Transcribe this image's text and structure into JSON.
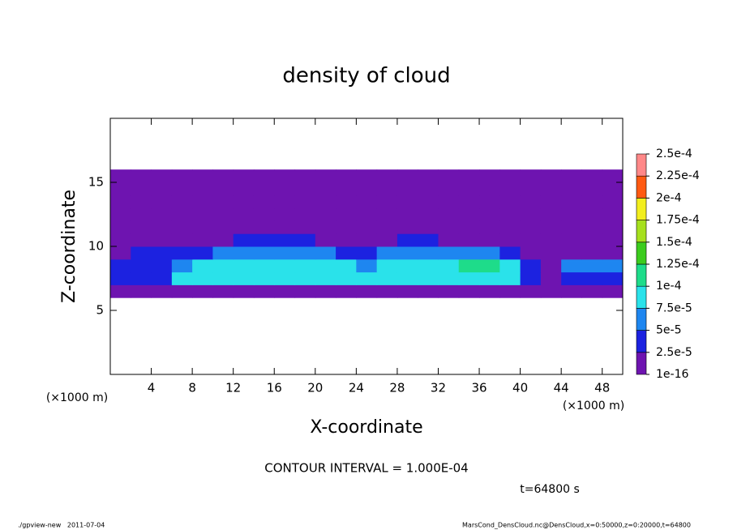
{
  "chart_data": {
    "type": "contour",
    "title": "density of cloud",
    "x_label": "X-coordinate",
    "y_label": "Z-coordinate",
    "x_unit_labels": [
      "(×1000 m)",
      "(×1000 m)"
    ],
    "contour_note": "CONTOUR INTERVAL = 1.000E-04",
    "time_label": "t=64800 s",
    "footer_left": "./gpview-new   2011-07-04",
    "footer_right": "MarsCond_DensCloud.nc@DensCloud,x=0:50000,z=0:20000,t=64800",
    "xlim": [
      0,
      50
    ],
    "xticks": [
      4,
      8,
      12,
      16,
      20,
      24,
      28,
      32,
      36,
      40,
      44,
      48
    ],
    "ylim": [
      0,
      20
    ],
    "yticks": [
      5,
      10,
      15
    ],
    "levels": [
      {
        "value": 1e-16,
        "label": "1e-16"
      },
      {
        "value": 2.5e-05,
        "label": "2.5e-5"
      },
      {
        "value": 5e-05,
        "label": "5e-5"
      },
      {
        "value": 7.5e-05,
        "label": "7.5e-5"
      },
      {
        "value": 0.0001,
        "label": "1e-4"
      },
      {
        "value": 0.000125,
        "label": "1.25e-4"
      },
      {
        "value": 0.00015,
        "label": "1.5e-4"
      },
      {
        "value": 0.000175,
        "label": "1.75e-4"
      },
      {
        "value": 0.0002,
        "label": "2e-4"
      },
      {
        "value": 0.000225,
        "label": "2.25e-4"
      },
      {
        "value": 0.00025,
        "label": "2.5e-4"
      }
    ],
    "colors": [
      "#6e14b0",
      "#1c22e0",
      "#1e86f0",
      "#2ae2ea",
      "#1edc8a",
      "#3ccc1e",
      "#a6e01e",
      "#f2ee1e",
      "#ff5a12",
      "#ff8888"
    ],
    "x": [
      1,
      3,
      5,
      7,
      9,
      11,
      13,
      15,
      17,
      19,
      21,
      23,
      25,
      27,
      29,
      31,
      33,
      35,
      37,
      39,
      41,
      43,
      45,
      47,
      49
    ],
    "y": [
      6.5,
      7.5,
      8.5,
      9.5,
      10.5,
      11.5,
      12.5,
      13.5,
      14.5,
      15.5
    ],
    "z": [
      [
        1e-05,
        1e-05,
        1e-05,
        1e-05,
        1e-05,
        1e-05,
        1e-05,
        1e-05,
        1e-05,
        1e-05,
        1e-05,
        1e-05,
        1e-05,
        1e-05,
        1e-05,
        1e-05,
        1e-05,
        1e-05,
        1e-05,
        1e-05,
        1e-05,
        1e-05,
        1e-05,
        1e-05,
        1e-05
      ],
      [
        3e-05,
        3e-05,
        3e-05,
        8e-05,
        8e-05,
        8e-05,
        8e-05,
        8e-05,
        8e-05,
        8e-05,
        8e-05,
        8e-05,
        8e-05,
        8e-05,
        8e-05,
        8e-05,
        8e-05,
        8e-05,
        8e-05,
        8e-05,
        3e-05,
        1e-05,
        3e-05,
        3e-05,
        3e-05
      ],
      [
        3e-05,
        3e-05,
        3e-05,
        6e-05,
        8e-05,
        8e-05,
        8e-05,
        8e-05,
        8e-05,
        8e-05,
        8e-05,
        8e-05,
        6e-05,
        8e-05,
        8e-05,
        8e-05,
        8e-05,
        0.000102,
        0.000102,
        8e-05,
        3e-05,
        1e-05,
        6e-05,
        6e-05,
        6e-05
      ],
      [
        1e-05,
        3e-05,
        3e-05,
        3e-05,
        3e-05,
        6e-05,
        6e-05,
        6e-05,
        6e-05,
        6e-05,
        6e-05,
        3e-05,
        3e-05,
        6e-05,
        6e-05,
        6e-05,
        6e-05,
        6e-05,
        6e-05,
        3e-05,
        1e-05,
        1e-05,
        1e-05,
        1e-05,
        1e-05
      ],
      [
        1e-05,
        1e-05,
        1e-05,
        1e-05,
        1e-05,
        1e-05,
        3e-05,
        3e-05,
        3e-05,
        3e-05,
        1e-05,
        1e-05,
        1e-05,
        1e-05,
        3e-05,
        3e-05,
        1e-05,
        1e-05,
        1e-05,
        1e-05,
        1e-05,
        1e-05,
        1e-05,
        1e-05,
        1e-05
      ],
      [
        1e-05,
        1e-05,
        1e-05,
        1e-05,
        1e-05,
        1e-05,
        1e-05,
        1e-05,
        1e-05,
        1e-05,
        1e-05,
        1e-05,
        1e-05,
        1e-05,
        1e-05,
        1e-05,
        1e-05,
        1e-05,
        1e-05,
        1e-05,
        1e-05,
        1e-05,
        1e-05,
        1e-05,
        1e-05
      ],
      [
        1e-05,
        1e-05,
        1e-05,
        1e-05,
        1e-05,
        1e-05,
        1e-05,
        1e-05,
        1e-05,
        1e-05,
        1e-05,
        1e-05,
        1e-05,
        1e-05,
        1e-05,
        1e-05,
        1e-05,
        1e-05,
        1e-05,
        1e-05,
        1e-05,
        1e-05,
        1e-05,
        1e-05,
        1e-05
      ],
      [
        1e-05,
        1e-05,
        1e-05,
        1e-05,
        1e-05,
        1e-05,
        1e-05,
        1e-05,
        1e-05,
        1e-05,
        1e-05,
        1e-05,
        1e-05,
        1e-05,
        1e-05,
        1e-05,
        1e-05,
        1e-05,
        1e-05,
        1e-05,
        1e-05,
        1e-05,
        1e-05,
        1e-05,
        1e-05
      ],
      [
        1e-05,
        1e-05,
        1e-05,
        1e-05,
        1e-05,
        1e-05,
        1e-05,
        1e-05,
        1e-05,
        1e-05,
        1e-05,
        1e-05,
        1e-05,
        1e-05,
        1e-05,
        1e-05,
        1e-05,
        1e-05,
        1e-05,
        1e-05,
        1e-05,
        1e-05,
        1e-05,
        1e-05,
        1e-05
      ],
      [
        1e-05,
        1e-05,
        1e-05,
        1e-05,
        1e-05,
        1e-05,
        1e-05,
        1e-05,
        1e-05,
        1e-05,
        1e-05,
        1e-05,
        1e-05,
        1e-05,
        1e-05,
        1e-05,
        1e-05,
        1e-05,
        1e-05,
        1e-05,
        1e-05,
        1e-05,
        1e-05,
        1e-05,
        1e-05
      ]
    ]
  }
}
